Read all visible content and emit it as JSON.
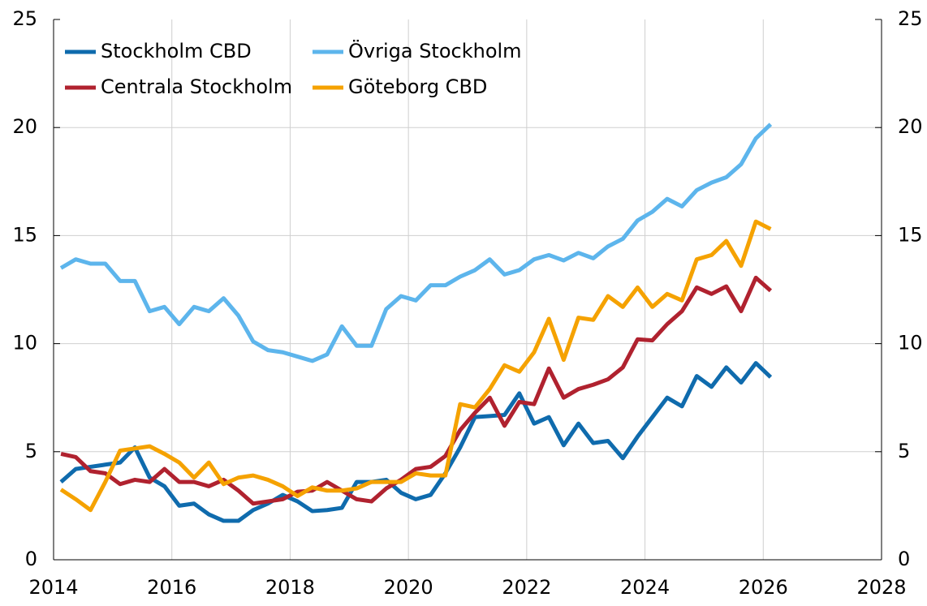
{
  "chart_data": {
    "type": "line",
    "x": [
      2014.125,
      2014.375,
      2014.625,
      2014.875,
      2015.125,
      2015.375,
      2015.625,
      2015.875,
      2016.125,
      2016.375,
      2016.625,
      2016.875,
      2017.125,
      2017.375,
      2017.625,
      2017.875,
      2018.125,
      2018.375,
      2018.625,
      2018.875,
      2019.125,
      2019.375,
      2019.625,
      2019.875,
      2020.125,
      2020.375,
      2020.625,
      2020.875,
      2021.125,
      2021.375,
      2021.625,
      2021.875,
      2022.125,
      2022.375,
      2022.625,
      2022.875,
      2023.125,
      2023.375,
      2023.625,
      2023.875,
      2024.125,
      2024.375,
      2024.625,
      2024.875,
      2025.125,
      2025.375,
      2025.625,
      2025.875,
      2026.125
    ],
    "series": [
      {
        "name": "Stockholm CBD",
        "color": "#0f6bad",
        "values": [
          3.6,
          4.2,
          4.3,
          4.4,
          4.5,
          5.2,
          3.8,
          3.4,
          2.5,
          2.6,
          2.1,
          1.8,
          1.8,
          2.3,
          2.6,
          3.0,
          2.7,
          2.25,
          2.3,
          2.4,
          3.6,
          3.6,
          3.7,
          3.1,
          2.8,
          3.0,
          4.0,
          5.2,
          6.6,
          6.65,
          6.7,
          7.7,
          6.3,
          6.6,
          5.3,
          6.3,
          5.4,
          5.5,
          4.7,
          5.7,
          6.6,
          7.5,
          7.1,
          8.5,
          8.0,
          8.9,
          8.2,
          9.1,
          8.45
        ]
      },
      {
        "name": "Övriga Stockholm",
        "color": "#5db5ec",
        "values": [
          13.5,
          13.9,
          13.7,
          13.7,
          12.9,
          12.9,
          11.5,
          11.7,
          10.9,
          11.7,
          11.5,
          12.1,
          11.3,
          10.1,
          9.7,
          9.6,
          9.4,
          9.2,
          9.5,
          10.8,
          9.9,
          9.9,
          11.6,
          12.2,
          12.0,
          12.7,
          12.7,
          13.1,
          13.4,
          13.9,
          13.2,
          13.4,
          13.9,
          14.1,
          13.85,
          14.2,
          13.95,
          14.5,
          14.85,
          15.7,
          16.1,
          16.7,
          16.35,
          17.1,
          17.45,
          17.7,
          18.3,
          19.5,
          20.15
        ]
      },
      {
        "name": "Centrala Stockholm",
        "color": "#b0222f",
        "values": [
          4.9,
          4.75,
          4.1,
          4.0,
          3.5,
          3.7,
          3.6,
          4.2,
          3.6,
          3.6,
          3.4,
          3.7,
          3.2,
          2.6,
          2.7,
          2.8,
          3.15,
          3.2,
          3.6,
          3.2,
          2.8,
          2.7,
          3.3,
          3.7,
          4.2,
          4.3,
          4.8,
          6.0,
          6.8,
          7.5,
          6.2,
          7.3,
          7.2,
          8.85,
          7.5,
          7.9,
          8.1,
          8.35,
          8.9,
          10.2,
          10.15,
          10.9,
          11.5,
          12.6,
          12.3,
          12.65,
          11.5,
          13.05,
          12.45
        ]
      },
      {
        "name": "Göteborg CBD",
        "color": "#f5a200",
        "values": [
          3.25,
          2.8,
          2.3,
          3.6,
          5.05,
          5.15,
          5.25,
          4.9,
          4.5,
          3.8,
          4.5,
          3.5,
          3.8,
          3.9,
          3.7,
          3.4,
          2.95,
          3.35,
          3.2,
          3.2,
          3.3,
          3.6,
          3.6,
          3.6,
          4.0,
          3.9,
          3.9,
          7.2,
          7.05,
          7.9,
          9.0,
          8.7,
          9.6,
          11.15,
          9.25,
          11.2,
          11.1,
          12.2,
          11.7,
          12.6,
          11.7,
          12.3,
          12.0,
          13.9,
          14.1,
          14.75,
          13.6,
          15.65,
          15.3
        ]
      }
    ],
    "xlim": [
      2014,
      2028
    ],
    "xticks": [
      2014,
      2016,
      2018,
      2020,
      2022,
      2024,
      2026,
      2028
    ],
    "ylim": [
      0,
      25
    ],
    "yticks": [
      0,
      5,
      10,
      15,
      20,
      25
    ],
    "y2lim": [
      0,
      25
    ],
    "y2ticks": [
      0,
      5,
      10,
      15,
      20,
      25
    ],
    "grid": true,
    "legend": "upper left"
  }
}
